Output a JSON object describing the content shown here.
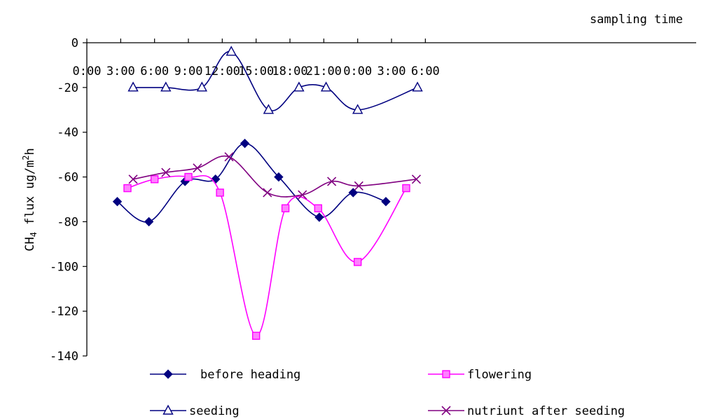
{
  "chart_data": {
    "type": "line",
    "xlabel": "sampling time",
    "ylabel": "CH4 flux ug/m2h",
    "ylabel_parts": {
      "pre": "CH",
      "sub": "4",
      "mid": " flux ug/m",
      "sup": "2",
      "post": "h"
    },
    "x_axis_position": "top",
    "x_unit": "hours from first 0:00",
    "xlim": [
      0,
      54
    ],
    "ylim": [
      -140,
      0
    ],
    "x_ticks": [
      {
        "value": 0,
        "label": "0:00"
      },
      {
        "value": 3,
        "label": "3:00"
      },
      {
        "value": 6,
        "label": "6:00"
      },
      {
        "value": 9,
        "label": "9:00"
      },
      {
        "value": 12,
        "label": "12:00"
      },
      {
        "value": 15,
        "label": "15:00"
      },
      {
        "value": 18,
        "label": "18:00"
      },
      {
        "value": 21,
        "label": "21:00"
      },
      {
        "value": 24,
        "label": "0:00"
      },
      {
        "value": 27,
        "label": "3:00"
      },
      {
        "value": 30,
        "label": "6:00"
      }
    ],
    "y_ticks": [
      0,
      -20,
      -40,
      -60,
      -80,
      -100,
      -120,
      -140
    ],
    "grid": false,
    "legend_position": "bottom",
    "series": [
      {
        "name": "before heading",
        "color": "#000080",
        "marker": "diamond",
        "points": [
          [
            2.7,
            -71
          ],
          [
            5.5,
            -80
          ],
          [
            8.7,
            -62
          ],
          [
            11.4,
            -61
          ],
          [
            14,
            -45
          ],
          [
            17,
            -60
          ],
          [
            20.6,
            -78
          ],
          [
            23.6,
            -67
          ],
          [
            26.5,
            -71
          ]
        ]
      },
      {
        "name": "flowering",
        "color": "#ff00ff",
        "marker": "square",
        "points": [
          [
            3.6,
            -65
          ],
          [
            6,
            -61
          ],
          [
            9,
            -60
          ],
          [
            11.8,
            -67
          ],
          [
            15,
            -131
          ],
          [
            17.6,
            -74
          ],
          [
            20.5,
            -74
          ],
          [
            24,
            -98
          ],
          [
            28.3,
            -65
          ]
        ]
      },
      {
        "name": "seeding",
        "color": "#000080",
        "marker": "triangle",
        "points": [
          [
            4.1,
            -20
          ],
          [
            7,
            -20
          ],
          [
            10.2,
            -20
          ],
          [
            12.8,
            -4
          ],
          [
            16.1,
            -30
          ],
          [
            18.8,
            -20
          ],
          [
            21.2,
            -20
          ],
          [
            24,
            -30
          ],
          [
            29.3,
            -20
          ]
        ]
      },
      {
        "name": "nutriunt after seeding",
        "color": "#800080",
        "marker": "x",
        "points": [
          [
            4.1,
            -61
          ],
          [
            7,
            -58
          ],
          [
            9.8,
            -56
          ],
          [
            12.6,
            -51
          ],
          [
            16,
            -67
          ],
          [
            19.1,
            -68
          ],
          [
            21.7,
            -62
          ],
          [
            24.1,
            -64
          ],
          [
            29.2,
            -61
          ]
        ]
      }
    ]
  }
}
